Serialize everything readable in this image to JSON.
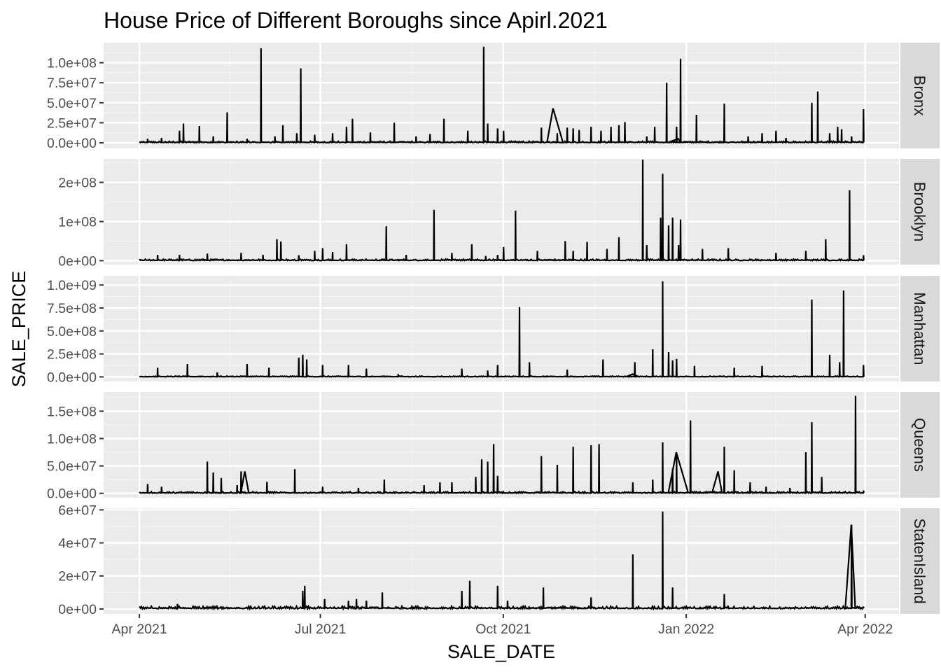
{
  "chart_data": {
    "type": "line",
    "title": "House Price of Different Boroughs since Apirl.2021",
    "xlabel": "SALE_DATE",
    "ylabel": "SALE_PRICE",
    "x_ticks": [
      {
        "date": "2021-04-01",
        "label": "Apr 2021"
      },
      {
        "date": "2021-07-01",
        "label": "Jul 2021"
      },
      {
        "date": "2021-10-01",
        "label": "Oct 2021"
      },
      {
        "date": "2022-01-01",
        "label": "Jan 2022"
      },
      {
        "date": "2022-04-01",
        "label": "Apr 2022"
      }
    ],
    "xlim": [
      "2021-03-14",
      "2022-04-18"
    ],
    "grid": true,
    "facets": [
      {
        "name": "Bronx",
        "ylim": [
          -7000000,
          125000000
        ],
        "y_ticks": [
          {
            "value": 0,
            "label": "0.0e+00"
          },
          {
            "value": 25000000,
            "label": "2.5e+07"
          },
          {
            "value": 50000000,
            "label": "5.0e+07"
          },
          {
            "value": 75000000,
            "label": "7.5e+07"
          },
          {
            "value": 100000000,
            "label": "1.0e+08"
          }
        ],
        "baseline": 1000000,
        "peaks": [
          [
            "2021-04-05",
            5000000
          ],
          [
            "2021-04-12",
            6000000
          ],
          [
            "2021-04-21",
            15000000
          ],
          [
            "2021-04-23",
            24000000
          ],
          [
            "2021-05-01",
            21000000
          ],
          [
            "2021-05-08",
            8000000
          ],
          [
            "2021-05-15",
            38000000
          ],
          [
            "2021-05-25",
            5000000
          ],
          [
            "2021-06-01",
            118000000
          ],
          [
            "2021-06-08",
            8000000
          ],
          [
            "2021-06-12",
            22000000
          ],
          [
            "2021-06-19",
            12000000
          ],
          [
            "2021-06-21",
            93000000
          ],
          [
            "2021-06-28",
            10000000
          ],
          [
            "2021-07-07",
            12000000
          ],
          [
            "2021-07-14",
            20000000
          ],
          [
            "2021-07-17",
            30000000
          ],
          [
            "2021-07-26",
            13000000
          ],
          [
            "2021-08-07",
            25000000
          ],
          [
            "2021-08-18",
            8000000
          ],
          [
            "2021-08-25",
            11000000
          ],
          [
            "2021-09-01",
            30000000
          ],
          [
            "2021-09-13",
            15000000
          ],
          [
            "2021-09-21",
            120000000
          ],
          [
            "2021-09-23",
            24000000
          ],
          [
            "2021-09-28",
            18000000
          ],
          [
            "2021-10-01",
            15000000
          ],
          [
            "2021-10-20",
            19000000
          ],
          [
            "2021-10-28",
            12000000
          ],
          [
            "2021-11-02",
            19000000
          ],
          [
            "2021-11-05",
            18000000
          ],
          [
            "2021-11-08",
            16000000
          ],
          [
            "2021-11-14",
            20000000
          ],
          [
            "2021-11-19",
            15000000
          ],
          [
            "2021-11-24",
            20000000
          ],
          [
            "2021-11-28",
            22000000
          ],
          [
            "2021-12-01",
            26000000
          ],
          [
            "2021-12-12",
            8000000
          ],
          [
            "2021-12-16",
            20000000
          ],
          [
            "2021-12-22",
            75000000
          ],
          [
            "2021-12-29",
            105000000
          ],
          [
            "2021-12-27",
            20000000
          ],
          [
            "2022-01-06",
            35000000
          ],
          [
            "2022-01-20",
            49000000
          ],
          [
            "2022-02-01",
            8000000
          ],
          [
            "2022-02-08",
            12000000
          ],
          [
            "2022-02-15",
            15000000
          ],
          [
            "2022-02-20",
            6000000
          ],
          [
            "2022-03-05",
            50000000
          ],
          [
            "2022-03-08",
            64000000
          ],
          [
            "2022-03-14",
            12000000
          ],
          [
            "2022-03-18",
            20000000
          ],
          [
            "2022-03-20",
            17000000
          ],
          [
            "2022-03-25",
            8000000
          ],
          [
            "2022-03-31",
            42000000
          ]
        ],
        "ramps": [
          [
            "2021-10-26",
            43000000,
            3,
            5
          ],
          [
            "2021-12-28",
            5000000,
            5,
            1
          ]
        ]
      },
      {
        "name": "Brooklyn",
        "ylim": [
          -10000000,
          260000000
        ],
        "y_ticks": [
          {
            "value": 0,
            "label": "0e+00"
          },
          {
            "value": 100000000,
            "label": "1e+08"
          },
          {
            "value": 200000000,
            "label": "2e+08"
          }
        ],
        "baseline": 2000000,
        "peaks": [
          [
            "2021-04-10",
            15000000
          ],
          [
            "2021-04-21",
            15000000
          ],
          [
            "2021-05-05",
            18000000
          ],
          [
            "2021-05-22",
            20000000
          ],
          [
            "2021-06-02",
            15000000
          ],
          [
            "2021-06-09",
            55000000
          ],
          [
            "2021-06-11",
            49000000
          ],
          [
            "2021-06-20",
            14000000
          ],
          [
            "2021-06-28",
            25000000
          ],
          [
            "2021-07-02",
            32000000
          ],
          [
            "2021-07-07",
            22000000
          ],
          [
            "2021-07-14",
            42000000
          ],
          [
            "2021-08-03",
            88000000
          ],
          [
            "2021-08-13",
            15000000
          ],
          [
            "2021-08-27",
            130000000
          ],
          [
            "2021-09-05",
            20000000
          ],
          [
            "2021-09-15",
            42000000
          ],
          [
            "2021-09-22",
            12000000
          ],
          [
            "2021-09-28",
            15000000
          ],
          [
            "2021-10-01",
            35000000
          ],
          [
            "2021-10-07",
            128000000
          ],
          [
            "2021-10-18",
            25000000
          ],
          [
            "2021-11-01",
            50000000
          ],
          [
            "2021-11-05",
            25000000
          ],
          [
            "2021-11-12",
            48000000
          ],
          [
            "2021-11-22",
            30000000
          ],
          [
            "2021-11-28",
            60000000
          ],
          [
            "2021-12-10",
            258000000
          ],
          [
            "2021-12-12",
            40000000
          ],
          [
            "2021-12-19",
            110000000
          ],
          [
            "2021-12-20",
            222000000
          ],
          [
            "2021-12-23",
            90000000
          ],
          [
            "2021-12-25",
            110000000
          ],
          [
            "2021-12-28",
            40000000
          ],
          [
            "2021-12-29",
            105000000
          ],
          [
            "2022-01-09",
            30000000
          ],
          [
            "2022-01-22",
            32000000
          ],
          [
            "2022-02-15",
            20000000
          ],
          [
            "2022-03-02",
            25000000
          ],
          [
            "2022-03-12",
            55000000
          ],
          [
            "2022-03-24",
            180000000
          ],
          [
            "2022-03-31",
            14000000
          ]
        ],
        "ramps": []
      },
      {
        "name": "Manhattan",
        "ylim": [
          -50000000,
          1100000000
        ],
        "y_ticks": [
          {
            "value": 0,
            "label": "0.0e+00"
          },
          {
            "value": 250000000,
            "label": "2.5e+08"
          },
          {
            "value": 500000000,
            "label": "5.0e+08"
          },
          {
            "value": 750000000,
            "label": "7.5e+08"
          },
          {
            "value": 1000000000,
            "label": "1.0e+09"
          }
        ],
        "baseline": 5000000,
        "peaks": [
          [
            "2021-04-10",
            100000000
          ],
          [
            "2021-04-25",
            140000000
          ],
          [
            "2021-05-10",
            50000000
          ],
          [
            "2021-05-25",
            140000000
          ],
          [
            "2021-06-05",
            100000000
          ],
          [
            "2021-06-20",
            210000000
          ],
          [
            "2021-06-22",
            240000000
          ],
          [
            "2021-06-24",
            190000000
          ],
          [
            "2021-07-02",
            130000000
          ],
          [
            "2021-07-15",
            130000000
          ],
          [
            "2021-07-24",
            90000000
          ],
          [
            "2021-08-09",
            30000000
          ],
          [
            "2021-09-10",
            90000000
          ],
          [
            "2021-09-23",
            70000000
          ],
          [
            "2021-09-28",
            130000000
          ],
          [
            "2021-10-09",
            760000000
          ],
          [
            "2021-10-14",
            160000000
          ],
          [
            "2021-11-02",
            80000000
          ],
          [
            "2021-11-20",
            190000000
          ],
          [
            "2021-12-06",
            160000000
          ],
          [
            "2021-12-15",
            300000000
          ],
          [
            "2021-12-20",
            1040000000
          ],
          [
            "2021-12-23",
            270000000
          ],
          [
            "2021-12-25",
            180000000
          ],
          [
            "2021-12-27",
            195000000
          ],
          [
            "2022-01-05",
            120000000
          ],
          [
            "2022-01-25",
            100000000
          ],
          [
            "2022-02-08",
            120000000
          ],
          [
            "2022-03-05",
            840000000
          ],
          [
            "2022-03-14",
            240000000
          ],
          [
            "2022-03-19",
            160000000
          ],
          [
            "2022-03-21",
            940000000
          ],
          [
            "2022-03-31",
            130000000
          ]
        ],
        "ramps": [
          [
            "2021-12-05",
            30000000,
            3,
            3
          ]
        ]
      },
      {
        "name": "Queens",
        "ylim": [
          -8000000,
          185000000
        ],
        "y_ticks": [
          {
            "value": 0,
            "label": "0.0e+00"
          },
          {
            "value": 50000000,
            "label": "5.0e+07"
          },
          {
            "value": 100000000,
            "label": "1.0e+08"
          },
          {
            "value": 150000000,
            "label": "1.5e+08"
          }
        ],
        "baseline": 1500000,
        "peaks": [
          [
            "2021-04-05",
            17000000
          ],
          [
            "2021-04-12",
            12000000
          ],
          [
            "2021-05-05",
            58000000
          ],
          [
            "2021-05-08",
            38000000
          ],
          [
            "2021-05-12",
            28000000
          ],
          [
            "2021-05-20",
            15000000
          ],
          [
            "2021-05-22",
            40000000
          ],
          [
            "2021-06-04",
            21000000
          ],
          [
            "2021-06-18",
            44000000
          ],
          [
            "2021-07-02",
            12000000
          ],
          [
            "2021-07-20",
            10000000
          ],
          [
            "2021-08-02",
            25000000
          ],
          [
            "2021-08-22",
            15000000
          ],
          [
            "2021-08-30",
            20000000
          ],
          [
            "2021-09-05",
            20000000
          ],
          [
            "2021-09-17",
            30000000
          ],
          [
            "2021-09-20",
            62000000
          ],
          [
            "2021-09-23",
            58000000
          ],
          [
            "2021-09-26",
            90000000
          ],
          [
            "2021-09-28",
            32000000
          ],
          [
            "2021-10-20",
            68000000
          ],
          [
            "2021-10-28",
            52000000
          ],
          [
            "2021-11-05",
            85000000
          ],
          [
            "2021-11-14",
            88000000
          ],
          [
            "2021-11-18",
            90000000
          ],
          [
            "2021-12-05",
            20000000
          ],
          [
            "2021-12-15",
            25000000
          ],
          [
            "2021-12-20",
            93000000
          ],
          [
            "2021-12-25",
            45000000
          ],
          [
            "2021-12-27",
            70000000
          ],
          [
            "2022-01-03",
            133000000
          ],
          [
            "2022-01-20",
            85000000
          ],
          [
            "2022-01-25",
            42000000
          ],
          [
            "2022-02-02",
            20000000
          ],
          [
            "2022-02-10",
            12000000
          ],
          [
            "2022-02-22",
            10000000
          ],
          [
            "2022-03-02",
            75000000
          ],
          [
            "2022-03-05",
            130000000
          ],
          [
            "2022-03-10",
            30000000
          ],
          [
            "2022-03-27",
            178000000
          ],
          [
            "2022-03-31",
            5000000
          ]
        ],
        "ramps": [
          [
            "2021-12-27",
            75000000,
            4,
            6
          ],
          [
            "2022-01-17",
            40000000,
            3,
            2
          ],
          [
            "2021-05-24",
            40000000,
            2,
            2
          ]
        ]
      },
      {
        "name": "StatenIsland",
        "ylim": [
          -3000000,
          61000000
        ],
        "y_ticks": [
          {
            "value": 0,
            "label": "0e+00"
          },
          {
            "value": 20000000,
            "label": "2e+07"
          },
          {
            "value": 40000000,
            "label": "4e+07"
          },
          {
            "value": 60000000,
            "label": "6e+07"
          }
        ],
        "baseline": 800000,
        "peaks": [
          [
            "2021-04-20",
            3000000
          ],
          [
            "2021-06-22",
            11000000
          ],
          [
            "2021-06-23",
            14000000
          ],
          [
            "2021-07-03",
            6000000
          ],
          [
            "2021-07-15",
            5000000
          ],
          [
            "2021-07-19",
            6000000
          ],
          [
            "2021-07-24",
            5000000
          ],
          [
            "2021-08-01",
            10000000
          ],
          [
            "2021-09-10",
            11000000
          ],
          [
            "2021-09-14",
            17000000
          ],
          [
            "2021-09-28",
            14000000
          ],
          [
            "2021-10-03",
            5000000
          ],
          [
            "2021-10-21",
            13000000
          ],
          [
            "2021-11-14",
            7000000
          ],
          [
            "2021-12-05",
            33000000
          ],
          [
            "2021-12-20",
            59000000
          ],
          [
            "2021-12-25",
            13000000
          ],
          [
            "2022-01-20",
            9000000
          ],
          [
            "2022-03-25",
            51000000
          ]
        ],
        "ramps": [
          [
            "2022-03-25",
            51000000,
            3,
            2
          ]
        ]
      }
    ]
  }
}
